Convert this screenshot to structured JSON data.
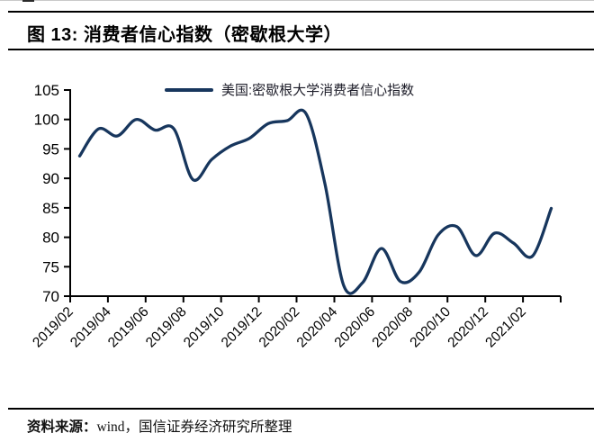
{
  "figure": {
    "title": "图 13: 消费者信心指数（密歇根大学）",
    "source_label": "资料来源：",
    "source_text": "wind，国信证券经济研究所整理"
  },
  "chart_data": {
    "type": "line",
    "smoothed": true,
    "grid": false,
    "legend_position": "top-center",
    "ylim": [
      70,
      105
    ],
    "y_tick_step": 5,
    "x": [
      "2019/02",
      "2019/03",
      "2019/04",
      "2019/05",
      "2019/06",
      "2019/07",
      "2019/08",
      "2019/09",
      "2019/10",
      "2019/11",
      "2019/12",
      "2020/01",
      "2020/02",
      "2020/03",
      "2020/04",
      "2020/05",
      "2020/06",
      "2020/07",
      "2020/08",
      "2020/09",
      "2020/10",
      "2020/11",
      "2020/12",
      "2021/01",
      "2021/02",
      "2021/03"
    ],
    "x_tick_labels": [
      "2019/02",
      "2019/04",
      "2019/06",
      "2019/08",
      "2019/10",
      "2019/12",
      "2020/02",
      "2020/04",
      "2020/06",
      "2020/08",
      "2020/10",
      "2020/12",
      "2021/02"
    ],
    "series": [
      {
        "name": "美国:密歇根大学消费者信心指数",
        "color": "#17365D",
        "values": [
          93.8,
          98.4,
          97.2,
          100.0,
          98.2,
          98.4,
          89.8,
          93.2,
          95.5,
          96.8,
          99.3,
          99.8,
          101.0,
          89.1,
          71.8,
          72.3,
          78.1,
          72.5,
          74.1,
          80.4,
          81.8,
          76.9,
          80.7,
          79.0,
          76.8,
          84.9
        ]
      }
    ],
    "axis_color": "#000000"
  }
}
